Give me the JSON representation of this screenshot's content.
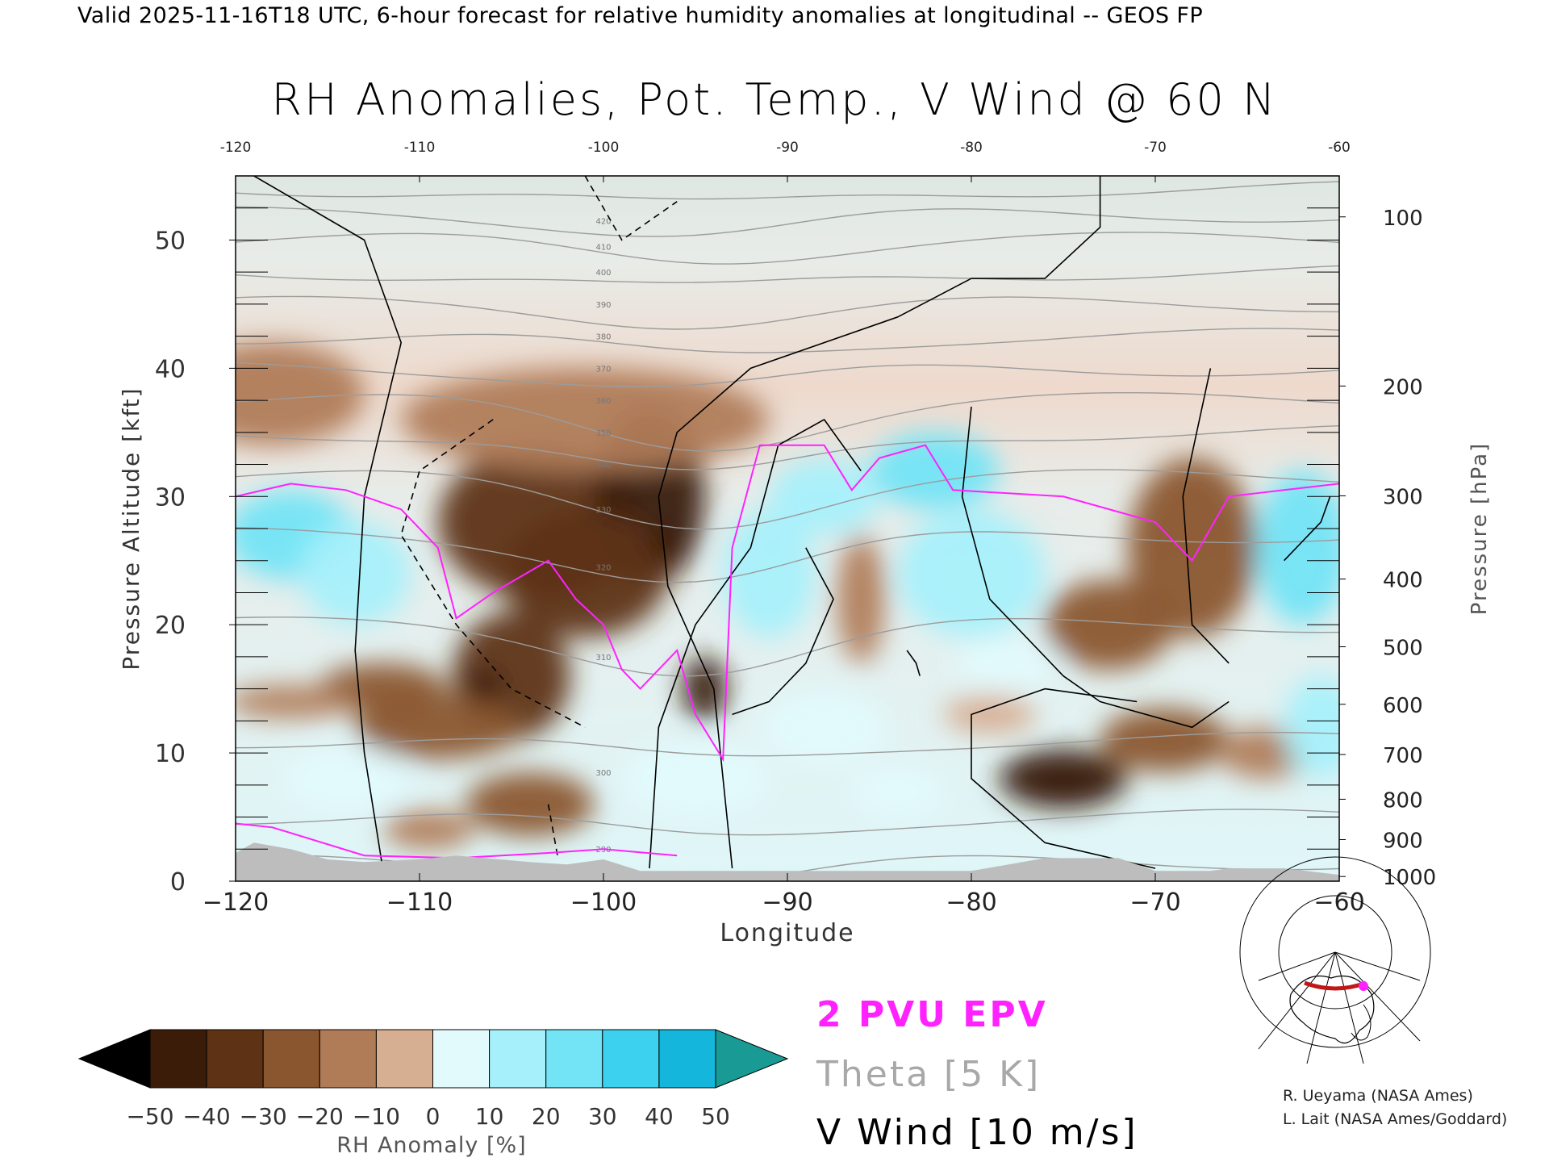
{
  "header": {
    "valid_line": "Valid 2025-11-16T18 UTC, 6-hour forecast for relative humidity anomalies at longitudinal -- GEOS FP",
    "title": "RH Anomalies, Pot. Temp., V Wind @ 60 N"
  },
  "legend": {
    "epv_label": "2 PVU EPV",
    "theta_label": "Theta [5 K]",
    "vwind_label": "V Wind [10 m/s]",
    "colorbar_label": "RH Anomaly [%]",
    "colorbar_ticks": [
      "−50",
      "−40",
      "−30",
      "−20",
      "−10",
      "0",
      "10",
      "20",
      "30",
      "40",
      "50"
    ]
  },
  "credits": [
    "R. Ueyama (NASA Ames)",
    "L. Lait (NASA Ames/Goddard)"
  ],
  "colors": {
    "epv": "#ff22ff",
    "theta": "#9c9c9c",
    "wind": "#000000",
    "terrain": "#bdbdbd",
    "colormap": [
      "#000000",
      "#3a1c08",
      "#5e3214",
      "#8a5630",
      "#b07c58",
      "#d6ae92",
      "#f2dccd",
      "#e2fafc",
      "#a6f0fb",
      "#72e4f6",
      "#3cd2ef",
      "#14b6dc",
      "#0a7c98",
      "#199a94"
    ]
  },
  "chart_data": {
    "type": "heatmap",
    "xlabel": "Longitude",
    "ylabel": "Pressure Altitude [kft]",
    "y2label": "Pressure [hPa]",
    "xlim": [
      -120,
      -60
    ],
    "ylim": [
      0,
      55
    ],
    "x_ticks": [
      "−120",
      "−110",
      "−100",
      "−90",
      "−80",
      "−70",
      "−60"
    ],
    "top_ticks": [
      "-120",
      "-110",
      "-100",
      "-90",
      "-80",
      "-70",
      "-60"
    ],
    "y_ticks": [
      "0",
      "10",
      "20",
      "30",
      "40",
      "50"
    ],
    "pressure_ticks": [
      {
        "p": 1000,
        "label": "1000"
      },
      {
        "p": 900,
        "label": "900"
      },
      {
        "p": 800,
        "label": "800"
      },
      {
        "p": 700,
        "label": "700"
      },
      {
        "p": 600,
        "label": "600"
      },
      {
        "p": 500,
        "label": "500"
      },
      {
        "p": 400,
        "label": "400"
      },
      {
        "p": 300,
        "label": "300"
      },
      {
        "p": 200,
        "label": "200"
      },
      {
        "p": 100,
        "label": "100"
      }
    ],
    "theta_levels": [
      280,
      290,
      300,
      310,
      320,
      330,
      340,
      350,
      360,
      370,
      380,
      390,
      400,
      410,
      420
    ],
    "vwind_levels": [
      -10,
      0,
      10
    ],
    "rh_anomaly_blobs": [
      {
        "x": -103.5,
        "y": 28,
        "rx": 5.5,
        "ry": 6,
        "v": -35
      },
      {
        "x": -97.5,
        "y": 30,
        "rx": 3.0,
        "ry": 7,
        "v": -45
      },
      {
        "x": -101,
        "y": 24,
        "rx": 4.5,
        "ry": 5,
        "v": -40
      },
      {
        "x": -105,
        "y": 16,
        "rx": 3.2,
        "ry": 5,
        "v": -40
      },
      {
        "x": -106.5,
        "y": 15,
        "rx": 1.0,
        "ry": 1.5,
        "v": -50
      },
      {
        "x": -96.5,
        "y": 26.5,
        "rx": 1.0,
        "ry": 1.5,
        "v": -50
      },
      {
        "x": -94.5,
        "y": 15,
        "rx": 1.2,
        "ry": 2.5,
        "v": -42
      },
      {
        "x": -101,
        "y": 36,
        "rx": 10,
        "ry": 4,
        "v": -20
      },
      {
        "x": -109,
        "y": 12,
        "rx": 4.5,
        "ry": 2.5,
        "v": -30
      },
      {
        "x": -112,
        "y": 15,
        "rx": 3.5,
        "ry": 2,
        "v": -25
      },
      {
        "x": -104,
        "y": 6,
        "rx": 3.5,
        "ry": 2.5,
        "v": -25
      },
      {
        "x": -109.5,
        "y": 4,
        "rx": 2.5,
        "ry": 1.5,
        "v": -20
      },
      {
        "x": -117,
        "y": 14,
        "rx": 3.5,
        "ry": 1.3,
        "v": -18
      },
      {
        "x": -118,
        "y": 38,
        "rx": 5,
        "ry": 4,
        "v": -12
      },
      {
        "x": -68,
        "y": 26,
        "rx": 3.5,
        "ry": 7,
        "v": -25
      },
      {
        "x": -72.5,
        "y": 20,
        "rx": 3.5,
        "ry": 3.5,
        "v": -28
      },
      {
        "x": -75,
        "y": 8,
        "rx": 3.5,
        "ry": 2.3,
        "v": -45
      },
      {
        "x": -75,
        "y": 7,
        "rx": 2.0,
        "ry": 1.3,
        "v": -50
      },
      {
        "x": -69.5,
        "y": 11,
        "rx": 3.5,
        "ry": 2.5,
        "v": -25
      },
      {
        "x": -86,
        "y": 22,
        "rx": 1.3,
        "ry": 5,
        "v": -12
      },
      {
        "x": -64,
        "y": 10,
        "rx": 2.5,
        "ry": 2,
        "v": -12
      },
      {
        "x": -79,
        "y": 13,
        "rx": 2.5,
        "ry": 1.5,
        "v": -10
      },
      {
        "x": -117,
        "y": 27,
        "rx": 3.5,
        "ry": 3.5,
        "v": 30
      },
      {
        "x": -113.5,
        "y": 24,
        "rx": 3.0,
        "ry": 4,
        "v": 22
      },
      {
        "x": -88,
        "y": 30,
        "rx": 3,
        "ry": 3,
        "v": 28
      },
      {
        "x": -82,
        "y": 32,
        "rx": 3.5,
        "ry": 3,
        "v": 32
      },
      {
        "x": -91,
        "y": 24,
        "rx": 2.5,
        "ry": 5,
        "v": 25
      },
      {
        "x": -80,
        "y": 24,
        "rx": 4,
        "ry": 5,
        "v": 20
      },
      {
        "x": -62,
        "y": 26,
        "rx": 2.5,
        "ry": 6,
        "v": 30
      },
      {
        "x": -61,
        "y": 12,
        "rx": 2,
        "ry": 4,
        "v": 25
      },
      {
        "x": -95,
        "y": 8,
        "rx": 4,
        "ry": 3,
        "v": 18
      },
      {
        "x": -88,
        "y": 12,
        "rx": 3.5,
        "ry": 3,
        "v": 18
      },
      {
        "x": -114,
        "y": 8,
        "rx": 3.5,
        "ry": 2.5,
        "v": 18
      },
      {
        "x": -84,
        "y": 7,
        "rx": 2.5,
        "ry": 2,
        "v": 15
      },
      {
        "x": -78,
        "y": 17,
        "rx": 3,
        "ry": 2,
        "v": 14
      }
    ],
    "terrain_profile": [
      [
        -120,
        2.2
      ],
      [
        -119,
        3.0
      ],
      [
        -117,
        2.5
      ],
      [
        -115,
        1.7
      ],
      [
        -113,
        1.5
      ],
      [
        -110,
        1.7
      ],
      [
        -108,
        2.0
      ],
      [
        -104,
        1.5
      ],
      [
        -102,
        1.3
      ],
      [
        -100,
        1.7
      ],
      [
        -98,
        0.8
      ],
      [
        -90,
        0.8
      ],
      [
        -80,
        0.8
      ],
      [
        -76,
        1.8
      ],
      [
        -72,
        1.8
      ],
      [
        -70,
        0.8
      ],
      [
        -67,
        0.8
      ],
      [
        -66,
        1.0
      ],
      [
        -63,
        1.0
      ],
      [
        -60,
        0.5
      ]
    ]
  }
}
